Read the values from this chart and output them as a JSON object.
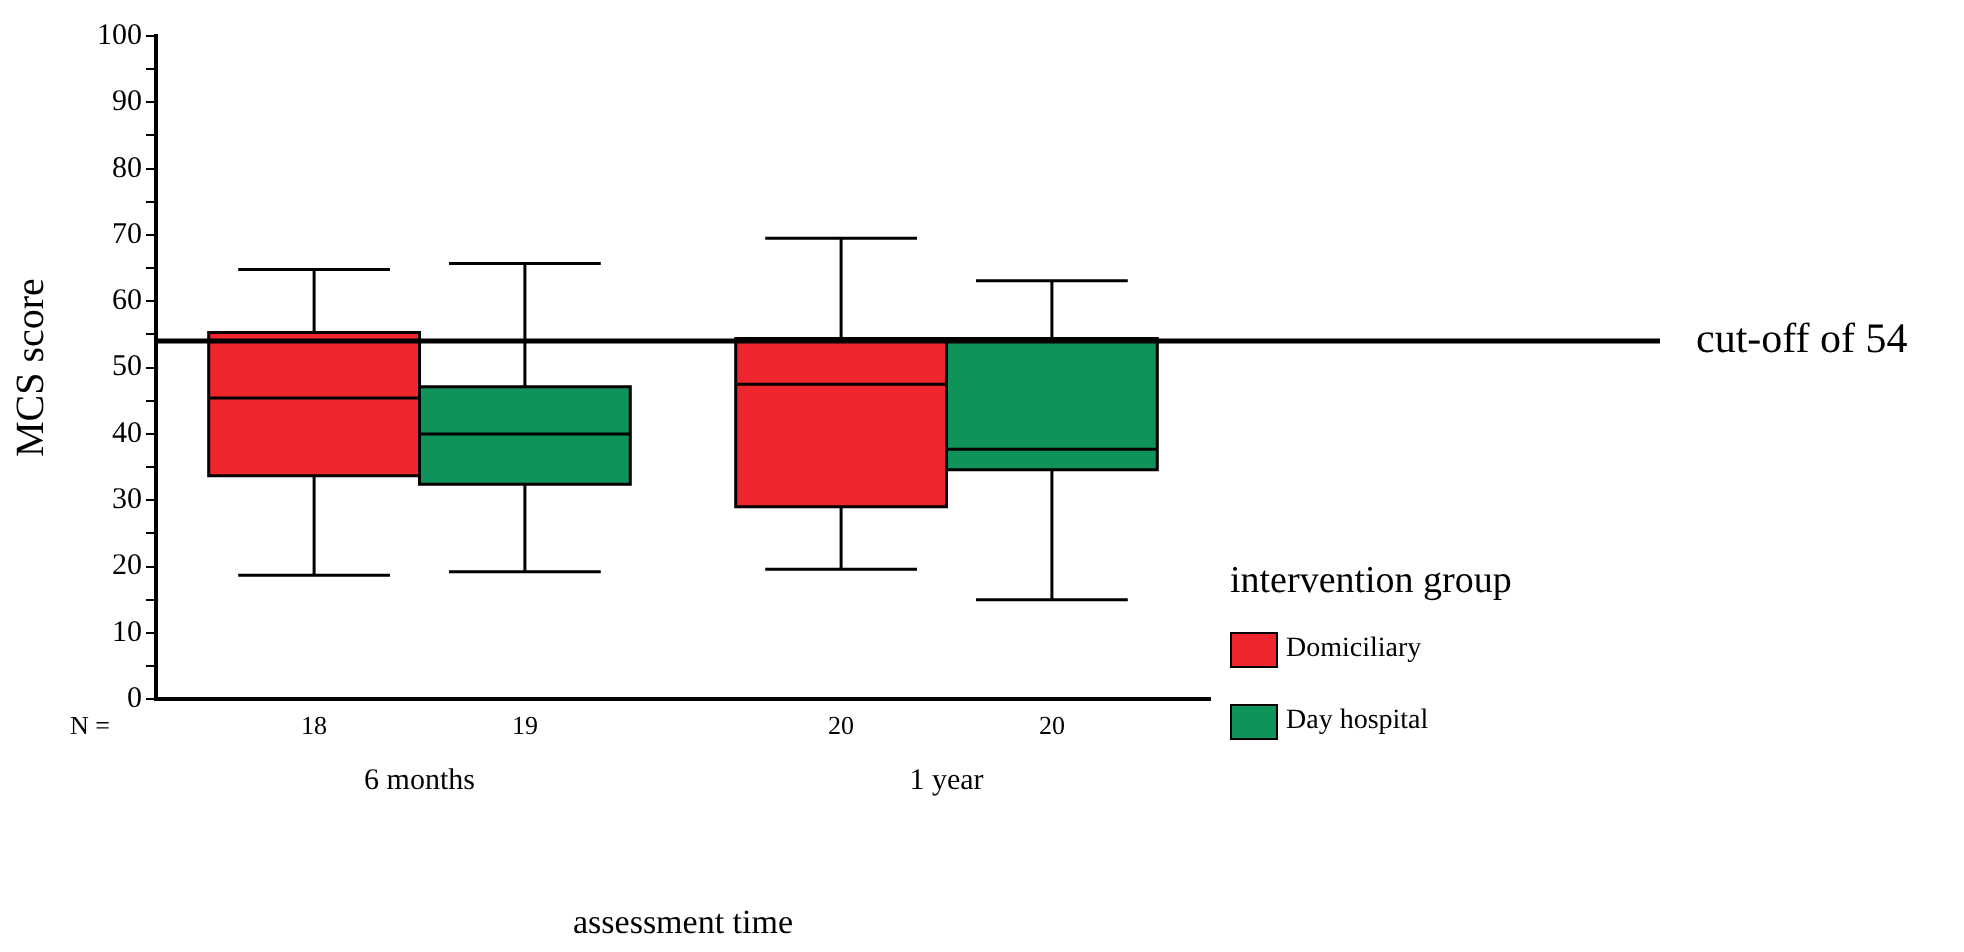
{
  "chart_data": {
    "type": "box",
    "xlabel": "assessment time",
    "ylabel": "MCS score",
    "legend_title": "intervention group",
    "legend": "right",
    "categories": [
      "6 months",
      "1 year"
    ],
    "series": [
      {
        "name": "Domiciliary",
        "color": "#f0262f",
        "boxes": [
          {
            "low": 18.7,
            "q1": 33.7,
            "median": 45.4,
            "q3": 55.3,
            "high": 64.8
          },
          {
            "low": 19.6,
            "q1": 29,
            "median": 47.5,
            "q3": 54.4,
            "high": 69.5
          }
        ]
      },
      {
        "name": "Day hospital",
        "color": "#10935a",
        "boxes": [
          {
            "low": 19.2,
            "q1": 32.4,
            "median": 40,
            "q3": 47.1,
            "high": 65.7
          },
          {
            "low": 15,
            "q1": 34.6,
            "median": 37.7,
            "q3": 54.4,
            "high": 63.1
          }
        ]
      }
    ],
    "ylim": [
      0,
      100
    ],
    "yticks": [
      0,
      {
        "value": 5,
        "label": null
      },
      10,
      {
        "value": 15,
        "label": null
      },
      20,
      {
        "value": 25,
        "label": null
      },
      30,
      {
        "value": 35,
        "label": null
      },
      40,
      {
        "value": 45,
        "label": null
      },
      50,
      {
        "value": 55,
        "label": null
      },
      60,
      {
        "value": 65,
        "label": null
      },
      70,
      {
        "value": 75,
        "label": null
      },
      80,
      {
        "value": 85,
        "label": null
      },
      90,
      {
        "value": 95,
        "label": null
      },
      100
    ],
    "grid": false,
    "ref_lines": [
      {
        "axis": "y",
        "value": 54,
        "label": "cut-off of 54",
        "color": "#000000",
        "line_style": "solid"
      }
    ],
    "annotations": [
      "N =",
      "18",
      "19",
      "20",
      "20"
    ]
  }
}
